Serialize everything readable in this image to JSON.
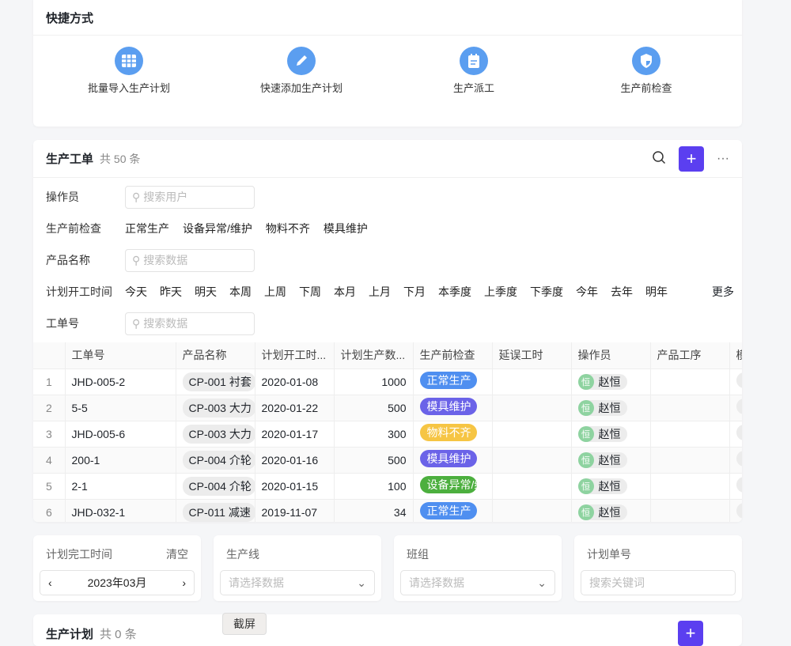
{
  "shortcuts": {
    "title": "快捷方式",
    "items": [
      {
        "label": "批量导入生产计划",
        "icon": "grid-table-icon"
      },
      {
        "label": "快速添加生产计划",
        "icon": "pencil-icon"
      },
      {
        "label": "生产派工",
        "icon": "clipboard-icon"
      },
      {
        "label": "生产前检查",
        "icon": "shield-icon"
      }
    ],
    "icon_color": "#5b9ef0"
  },
  "workorders": {
    "title": "生产工单",
    "count": "共 50 条",
    "accent": "#5b3ff0",
    "filters": {
      "operator": {
        "label": "操作员",
        "placeholder": "搜索用户"
      },
      "precheck": {
        "label": "生产前检查",
        "options": [
          "正常生产",
          "设备异常/维护",
          "物料不齐",
          "模具维护"
        ]
      },
      "product": {
        "label": "产品名称",
        "placeholder": "搜索数据"
      },
      "start_time": {
        "label": "计划开工时间",
        "options": [
          "今天",
          "昨天",
          "明天",
          "本周",
          "上周",
          "下周",
          "本月",
          "上月",
          "下月",
          "本季度",
          "上季度",
          "下季度",
          "今年",
          "去年",
          "明年"
        ],
        "more": "更多"
      },
      "order_no": {
        "label": "工单号",
        "placeholder": "搜索数据"
      }
    },
    "columns": [
      "工单号",
      "产品名称",
      "计划开工时...",
      "计划生产数...",
      "生产前检查",
      "延误工时",
      "操作员",
      "产品工序",
      "模"
    ],
    "rows": [
      {
        "idx": "1",
        "no": "JHD-005-2",
        "product": "CP-001 衬套",
        "start": "2020-01-08",
        "qty": "1000",
        "check": "正常生产",
        "check_color": "#4f8ff0",
        "operator": "赵恒",
        "avatar": "恒"
      },
      {
        "idx": "2",
        "no": "5-5",
        "product": "CP-003 大力",
        "start": "2020-01-22",
        "qty": "500",
        "check": "模具维护",
        "check_color": "#6b63e8",
        "operator": "赵恒",
        "avatar": "恒"
      },
      {
        "idx": "3",
        "no": "JHD-005-6",
        "product": "CP-003 大力",
        "start": "2020-01-17",
        "qty": "300",
        "check": "物料不齐",
        "check_color": "#f6c544",
        "operator": "赵恒",
        "avatar": "恒"
      },
      {
        "idx": "4",
        "no": "200-1",
        "product": "CP-004 介轮",
        "start": "2020-01-16",
        "qty": "500",
        "check": "模具维护",
        "check_color": "#6b63e8",
        "operator": "赵恒",
        "avatar": "恒"
      },
      {
        "idx": "5",
        "no": "2-1",
        "product": "CP-004 介轮",
        "start": "2020-01-15",
        "qty": "100",
        "check": "设备异常/维护",
        "check_color": "#4caf3e",
        "operator": "赵恒",
        "avatar": "恒"
      },
      {
        "idx": "6",
        "no": "JHD-032-1",
        "product": "CP-011 减速",
        "start": "2019-11-07",
        "qty": "34",
        "check": "正常生产",
        "check_color": "#4f8ff0",
        "operator": "赵恒",
        "avatar": "恒"
      }
    ]
  },
  "bottom": {
    "finish_time": {
      "label": "计划完工时间",
      "clear": "清空",
      "value": "2023年03月"
    },
    "line": {
      "label": "生产线",
      "placeholder": "请选择数据"
    },
    "team": {
      "label": "班组",
      "placeholder": "请选择数据"
    },
    "plan_no": {
      "label": "计划单号",
      "placeholder": "搜索关键词"
    }
  },
  "plans": {
    "title": "生产计划",
    "count": "共 0 条"
  },
  "screenshot_btn": "截屏"
}
